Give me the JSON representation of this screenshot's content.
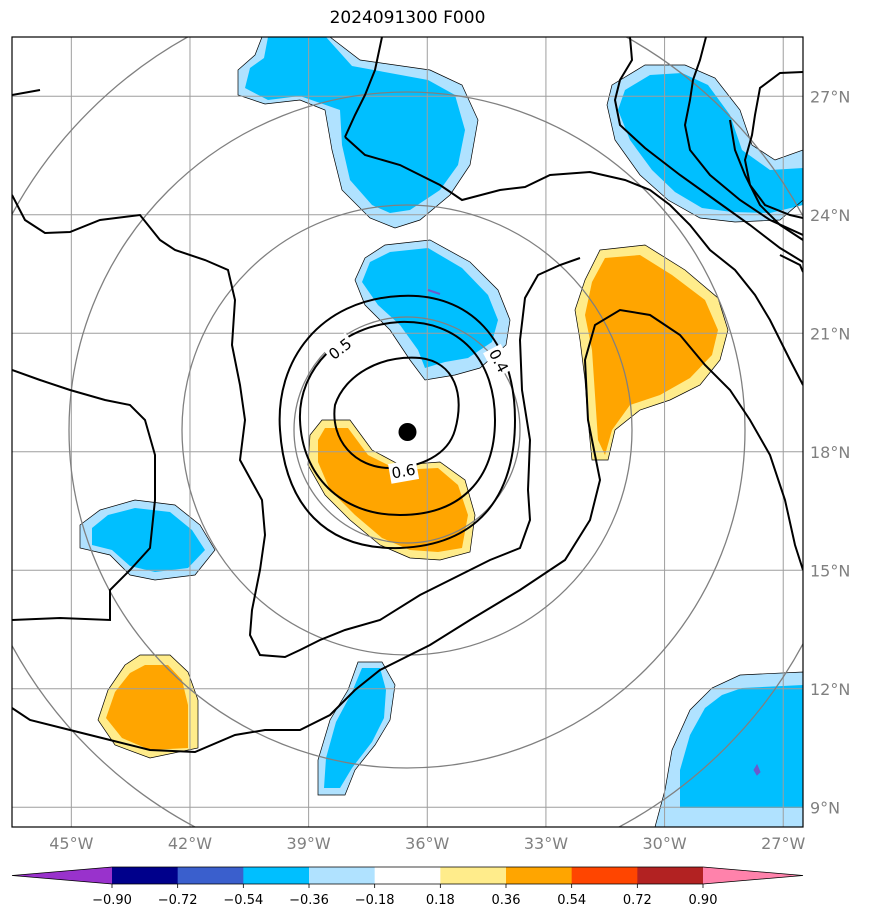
{
  "title": "2024091300 F000",
  "chart_data": {
    "type": "map",
    "title": "2024091300 F000",
    "lon_range": [
      -46.5,
      -26.5
    ],
    "lat_range": [
      8.5,
      28.5
    ],
    "lon_ticks": [
      {
        "value": -45,
        "label": "45°W"
      },
      {
        "value": -42,
        "label": "42°W"
      },
      {
        "value": -39,
        "label": "39°W"
      },
      {
        "value": -36,
        "label": "36°W"
      },
      {
        "value": -33,
        "label": "33°W"
      },
      {
        "value": -30,
        "label": "30°W"
      },
      {
        "value": -27,
        "label": "27°W"
      }
    ],
    "lat_ticks": [
      {
        "value": 9,
        "label": "9°N"
      },
      {
        "value": 12,
        "label": "12°N"
      },
      {
        "value": 15,
        "label": "15°N"
      },
      {
        "value": 18,
        "label": "18°N"
      },
      {
        "value": 21,
        "label": "21°N"
      },
      {
        "value": 24,
        "label": "24°N"
      },
      {
        "value": 27,
        "label": "27°N"
      }
    ],
    "grid": true,
    "center_marker": {
      "lon": -36.5,
      "lat": 18.5
    },
    "contour_labels": [
      {
        "text": "0.5",
        "lon": -38.2,
        "lat": 20.6
      },
      {
        "text": "0.4",
        "lon": -34.2,
        "lat": 20.3
      },
      {
        "text": "0.6",
        "lon": -36.6,
        "lat": 17.5
      }
    ],
    "colorbar": {
      "levels": [
        "−0.90",
        "−0.72",
        "−0.54",
        "−0.36",
        "−0.18",
        "0.18",
        "0.36",
        "0.54",
        "0.72",
        "0.90"
      ],
      "colors": [
        "#9932cc",
        "#00008b",
        "#3a5fcd",
        "#00bfff",
        "#b0e2ff",
        "#ffffff",
        "#ffec8b",
        "#ffa500",
        "#ff4500",
        "#b22222",
        "#ff82ab"
      ]
    }
  }
}
